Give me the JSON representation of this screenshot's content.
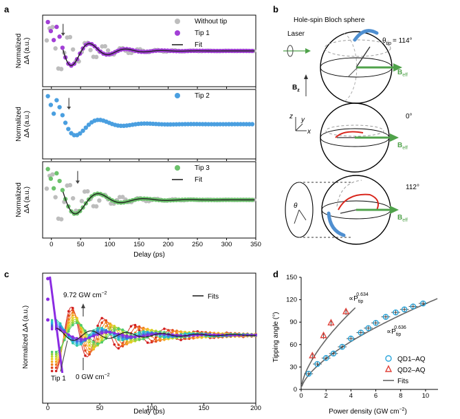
{
  "panel_labels": {
    "a": "a",
    "b": "b",
    "c": "c",
    "d": "d"
  },
  "chart_data": [
    {
      "id": "a",
      "type": "scatter",
      "xlabel": "Delay (ps)",
      "ylabel_line1": "Normalized",
      "ylabel_line2": "ΔA (a.u.)",
      "xlim": [
        -15,
        350
      ],
      "xticks": [
        "0",
        "50",
        "100",
        "150",
        "200",
        "250",
        "300",
        "350"
      ],
      "subplots": [
        {
          "legend": [
            {
              "name": "Without tip",
              "color": "#bdbdbd",
              "kind": "dot"
            },
            {
              "name": "Tip 1",
              "color": "#a23fd6",
              "kind": "dot"
            },
            {
              "name": "Fit",
              "color": "#222222",
              "kind": "line"
            }
          ],
          "tip_color": "#a23fd6",
          "period_tip": 62,
          "amp_tip": 1.0,
          "tau_tip": 45
        },
        {
          "legend": [
            {
              "name": "Tip 2",
              "color": "#4a9fe0",
              "kind": "dot"
            }
          ],
          "tip_color": "#4a9fe0",
          "period_tip": 80,
          "amp_tip": 1.0,
          "tau_tip": 42
        },
        {
          "legend": [
            {
              "name": "Tip 3",
              "color": "#6cc26c",
              "kind": "dot"
            },
            {
              "name": "Fit",
              "color": "#222222",
              "kind": "line"
            }
          ],
          "tip_color": "#6cc26c",
          "period_tip": 78,
          "amp_tip": 1.0,
          "tau_tip": 48
        }
      ],
      "reference": {
        "name": "Without tip",
        "color": "#bdbdbd",
        "period": 30
      }
    },
    {
      "id": "b",
      "type": "diagram",
      "title": "Hole-spin Bloch sphere",
      "laser_label": "Laser",
      "bz_label": "B",
      "bz_sub": "z",
      "beff_label": "B",
      "beff_sub": "eff",
      "theta_label": "θ",
      "theta_sub": "tip",
      "angles": [
        "= 114°",
        "0°",
        "112°"
      ],
      "axes": {
        "z": "z",
        "y": "y",
        "x": "x"
      },
      "theta_symbol": "θ",
      "beff_color": "#4fa24a",
      "arc_color": "#d9261c",
      "arrow_color": "#4f8fd0"
    },
    {
      "id": "c",
      "type": "line",
      "xlabel": "Delay (ps)",
      "ylabel": "Normalized ΔA (a.u.)",
      "xlim": [
        -5,
        200
      ],
      "xticks": [
        "0",
        "50",
        "100",
        "150",
        "200"
      ],
      "legend": "Fits",
      "ann_top": "9.72 GW cm",
      "ann_top_sup": "−2",
      "ann_bottom": "0 GW cm",
      "ann_bottom_sup": "−2",
      "ann_tip": "Tip 1",
      "n_curves": 15,
      "colors": [
        "#8a2be2",
        "#7b3fe0",
        "#5a4fd8",
        "#3d6fe0",
        "#2d9ee8",
        "#27bdd2",
        "#2fc7a0",
        "#4fcc6a",
        "#8bd23f",
        "#bcd62b",
        "#e6cf22",
        "#f4a81e",
        "#f07c1e",
        "#e2461c",
        "#d21d1d"
      ]
    },
    {
      "id": "d",
      "type": "scatter",
      "xlabel": "Power density (GW cm",
      "xlabel_sup": "−2",
      "xlabel_end": ")",
      "ylabel": "Tipping angle (°)",
      "xlim": [
        0,
        11
      ],
      "ylim": [
        0,
        150
      ],
      "xticks": [
        "0",
        "2",
        "4",
        "6",
        "8",
        "10"
      ],
      "yticks": [
        "0",
        "30",
        "60",
        "90",
        "120",
        "150"
      ],
      "fit_label_1": "∝P",
      "fit_label_1_sub": "tip",
      "fit_label_1_sup": "0.634",
      "fit_label_2": "∝P",
      "fit_label_2_sub": "tip",
      "fit_label_2_sup": "0.636",
      "series": [
        {
          "name": "QD1–AQ",
          "marker": "circle",
          "color": "#2aa6dc",
          "x": [
            0.6,
            1.3,
            2.0,
            2.6,
            3.3,
            4.0,
            4.8,
            5.4,
            6.0,
            6.8,
            7.6,
            8.3,
            9.0,
            9.8
          ],
          "y": [
            21,
            34,
            42,
            48,
            57,
            68,
            76,
            82,
            89,
            97,
            103,
            107,
            111,
            115
          ]
        },
        {
          "name": "QD2–AQ",
          "marker": "triangle",
          "color": "#e0443c",
          "x": [
            0.9,
            1.8,
            2.4,
            3.6
          ],
          "y": [
            45,
            72,
            89,
            104
          ]
        },
        {
          "name": "Fits",
          "marker": "line",
          "color": "#666666"
        }
      ]
    }
  ]
}
